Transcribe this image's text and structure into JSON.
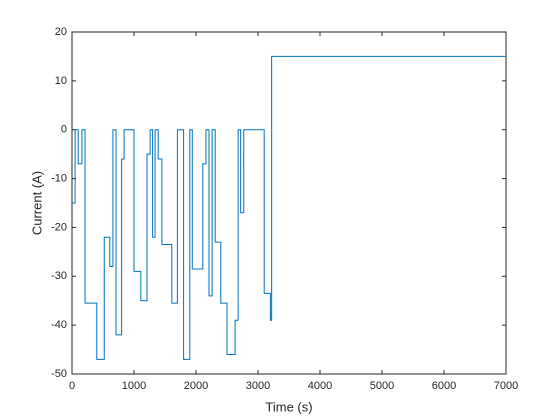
{
  "chart_data": {
    "type": "line",
    "xlabel": "Time (s)",
    "ylabel": "Current (A)",
    "x": [
      0,
      50,
      50,
      100,
      100,
      160,
      160,
      210,
      210,
      400,
      400,
      520,
      520,
      610,
      610,
      660,
      660,
      710,
      710,
      800,
      800,
      840,
      840,
      1000,
      1000,
      1110,
      1110,
      1210,
      1210,
      1260,
      1260,
      1300,
      1300,
      1340,
      1340,
      1390,
      1390,
      1450,
      1450,
      1610,
      1610,
      1700,
      1700,
      1800,
      1800,
      1900,
      1900,
      1940,
      1940,
      2110,
      2110,
      2160,
      2160,
      2210,
      2210,
      2260,
      2260,
      2310,
      2310,
      2400,
      2400,
      2500,
      2500,
      2630,
      2630,
      2680,
      2680,
      2720,
      2720,
      2770,
      2770,
      3100,
      3100,
      3200,
      3200,
      3220,
      3220,
      7000
    ],
    "series": [
      {
        "color": "#0072bd",
        "values": [
          -15,
          -15,
          0,
          0,
          -7,
          -7,
          0,
          0,
          -35.5,
          -35.5,
          -47,
          -47,
          -22,
          -22,
          -28,
          -28,
          0,
          0,
          -42,
          -42,
          -6,
          -6,
          0,
          0,
          -29,
          -29,
          -35,
          -35,
          -5,
          -5,
          0,
          0,
          -22,
          -22,
          0,
          0,
          -6,
          -6,
          -23.5,
          -23.5,
          -35.5,
          -35.5,
          0,
          0,
          -47,
          -47,
          0,
          0,
          -28.5,
          -28.5,
          -7,
          -7,
          0,
          0,
          -34,
          -34,
          0,
          0,
          -23,
          -23,
          -35.5,
          -35.5,
          -46,
          -46,
          -39,
          -39,
          0,
          0,
          -17,
          -17,
          0,
          0,
          -33.5,
          -33.5,
          -39,
          -39,
          15,
          15
        ]
      }
    ],
    "xlim": [
      0,
      7000
    ],
    "xticks": [
      0,
      1000,
      2000,
      3000,
      4000,
      5000,
      6000,
      7000
    ],
    "ylim": [
      -50,
      20
    ],
    "yticks": [
      -50,
      -40,
      -30,
      -20,
      -10,
      0,
      10,
      20
    ]
  }
}
